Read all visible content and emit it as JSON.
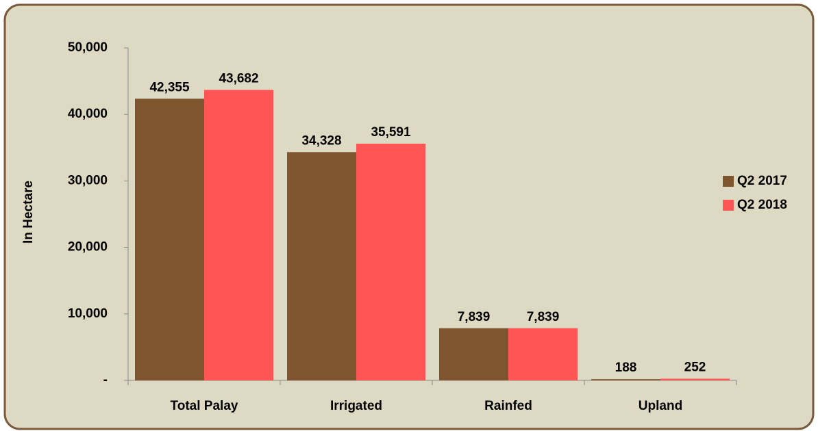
{
  "chart_data": {
    "type": "bar",
    "y_label": "In Hectare",
    "categories": [
      "Total Palay",
      "Irrigated",
      "Rainfed",
      "Upland"
    ],
    "series": [
      {
        "name": "Q2 2017",
        "color": "#7f5530",
        "label_color": "#000000",
        "values": [
          42355,
          34328,
          7839,
          188
        ],
        "value_labels": [
          "42,355",
          "34,328",
          "7,839",
          "188"
        ]
      },
      {
        "name": "Q2 2018",
        "color": "#ff5555",
        "label_color": "#c00000",
        "values": [
          43682,
          35591,
          7839,
          252
        ],
        "value_labels": [
          "43,682",
          "35,591",
          "7,839",
          "252"
        ]
      }
    ],
    "ylim": [
      0,
      50000
    ],
    "yticks": [
      {
        "value": 0,
        "label": "-"
      },
      {
        "value": 10000,
        "label": "10,000"
      },
      {
        "value": 20000,
        "label": "20,000"
      },
      {
        "value": 30000,
        "label": "30,000"
      },
      {
        "value": 40000,
        "label": "40,000"
      },
      {
        "value": 50000,
        "label": "50,000"
      }
    ],
    "grid": false,
    "legend": "right"
  }
}
